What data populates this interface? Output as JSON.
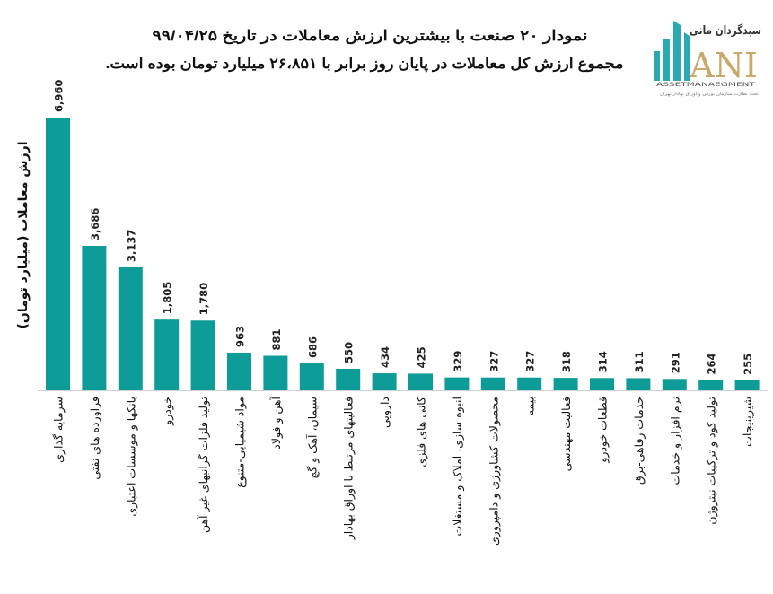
{
  "logo": {
    "persian_name": "سبدگردان مانی",
    "brand": "ANI",
    "tagline": "ASSETMANAEGMENT",
    "subtitle": "تحت نظارت سازمان بورس و اوراق بهادار تهران",
    "bar_color": "#2aa9b0",
    "text_color": "#c8a96a"
  },
  "chart_data": {
    "type": "bar",
    "title": "نمودار ۲۰ صنعت با بیشترین ارزش معاملات در تاریخ ۹۹/۰۴/۲۵",
    "subtitle": "مجموع ارزش  کل معاملات در پایان روز برابر با ۲۶،۸۵۱ میلیارد تومان بوده است.",
    "xlabel": "",
    "ylabel": "ارزش معاملات (میلیارد تومان)",
    "ylim": [
      0,
      7000
    ],
    "grid": false,
    "bar_color": "#0e9c98",
    "categories": [
      "سرمایه گذاری",
      "فراورده های نفتی",
      "بانکها و موسسات اعتباری",
      "خودرو",
      "تولید فلزات گرانبهای غیر آهن",
      "مواد شیمیایی-متنوع",
      "آهن و فولاد",
      "سیمان، آهک و گچ",
      "فعالیتهای مرتبط با اوراق بهادار",
      "دارویی",
      "کانی های فلزی",
      "انبوه سازی، املاک و مستغلات",
      "محصولات کشاورزی و دامپروری",
      "بیمه",
      "فعالیت مهندسی",
      "قطعات خودرو",
      "خدمات رفاهی-برق",
      "نرم افزار و خدمات",
      "تولید کود و ترکیبات نیتروژن",
      "شیرینیجات"
    ],
    "values": [
      6960,
      3686,
      3137,
      1805,
      1780,
      963,
      881,
      686,
      550,
      434,
      425,
      329,
      327,
      327,
      318,
      314,
      311,
      291,
      264,
      255
    ],
    "value_labels": [
      "6,960",
      "3,686",
      "3,137",
      "1,805",
      "1,780",
      "963",
      "881",
      "686",
      "550",
      "434",
      "425",
      "329",
      "327",
      "327",
      "318",
      "314",
      "311",
      "291",
      "264",
      "255"
    ]
  }
}
